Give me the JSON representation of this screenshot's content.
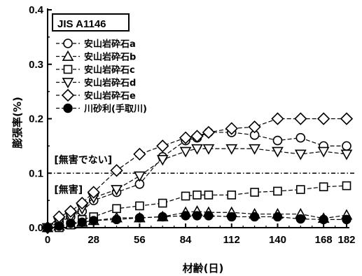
{
  "chart_data": {
    "type": "line",
    "title": "JIS A1146",
    "xlabel": "材齢(日)",
    "ylabel": "膨張率(%)",
    "xlim": [
      0,
      182
    ],
    "ylim": [
      0,
      0.4
    ],
    "x_ticks": [
      0,
      28,
      56,
      84,
      112,
      140,
      168,
      182
    ],
    "x_tick_labels": [
      "0",
      "28",
      "56",
      "84",
      "112",
      "140",
      "168",
      "182"
    ],
    "y_ticks": [
      0,
      0.1,
      0.2,
      0.3,
      0.4
    ],
    "y_tick_labels": [
      "0.0",
      "0.1",
      "0.2",
      "0.3",
      "0.4"
    ],
    "grid": false,
    "legend_position": "top-left",
    "threshold": {
      "value": 0.1,
      "style": "dash-dot"
    },
    "annotations": [
      {
        "text": "[無害でない]",
        "x": 4,
        "y": 0.125
      },
      {
        "text": "[無害]",
        "x": 4,
        "y": 0.07
      }
    ],
    "series": [
      {
        "name": "安山岩砕石a",
        "marker": "circle-open",
        "x": [
          0,
          7,
          14,
          21,
          28,
          42,
          56,
          70,
          84,
          91,
          98,
          112,
          126,
          140,
          154,
          168,
          182
        ],
        "y": [
          0.0,
          0.01,
          0.02,
          0.03,
          0.05,
          0.065,
          0.08,
          0.13,
          0.16,
          0.165,
          0.175,
          0.175,
          0.17,
          0.16,
          0.165,
          0.15,
          0.15
        ]
      },
      {
        "name": "安山岩砕石b",
        "marker": "triangle-up-open",
        "x": [
          0,
          7,
          14,
          21,
          28,
          42,
          56,
          70,
          84,
          91,
          98,
          112,
          126,
          140,
          154,
          168,
          182
        ],
        "y": [
          0.0,
          0.003,
          0.006,
          0.01,
          0.013,
          0.018,
          0.018,
          0.02,
          0.028,
          0.03,
          0.028,
          0.028,
          0.025,
          0.025,
          0.025,
          0.017,
          0.023
        ]
      },
      {
        "name": "安山岩砕石c",
        "marker": "square-open",
        "x": [
          0,
          7,
          14,
          21,
          28,
          42,
          56,
          70,
          84,
          91,
          98,
          112,
          126,
          140,
          154,
          168,
          182
        ],
        "y": [
          0.0,
          0.0,
          0.005,
          0.015,
          0.02,
          0.035,
          0.04,
          0.045,
          0.058,
          0.06,
          0.06,
          0.06,
          0.065,
          0.067,
          0.07,
          0.075,
          0.077
        ]
      },
      {
        "name": "安山岩砕石d",
        "marker": "triangle-down-open",
        "x": [
          0,
          7,
          14,
          21,
          28,
          42,
          56,
          70,
          84,
          91,
          98,
          112,
          126,
          140,
          154,
          168,
          182
        ],
        "y": [
          0.0,
          0.01,
          0.02,
          0.035,
          0.055,
          0.07,
          0.095,
          0.125,
          0.14,
          0.145,
          0.145,
          0.145,
          0.145,
          0.14,
          0.135,
          0.14,
          0.135
        ]
      },
      {
        "name": "安山岩砕石e",
        "marker": "diamond-open",
        "x": [
          0,
          7,
          14,
          21,
          28,
          42,
          56,
          70,
          84,
          91,
          98,
          112,
          126,
          140,
          154,
          168,
          182
        ],
        "y": [
          0.0,
          0.02,
          0.03,
          0.045,
          0.065,
          0.105,
          0.135,
          0.15,
          0.165,
          0.168,
          0.175,
          0.182,
          0.185,
          0.2,
          0.2,
          0.2,
          0.2
        ]
      },
      {
        "name": "川砂利(手取川)",
        "marker": "circle-halffilled",
        "x": [
          0,
          7,
          14,
          21,
          28,
          42,
          56,
          70,
          84,
          91,
          98,
          112,
          126,
          140,
          154,
          168,
          182
        ],
        "y": [
          0.0,
          0.003,
          0.008,
          0.01,
          0.013,
          0.015,
          0.018,
          0.02,
          0.022,
          0.022,
          0.022,
          0.02,
          0.02,
          0.02,
          0.016,
          0.015,
          0.015
        ]
      }
    ]
  }
}
